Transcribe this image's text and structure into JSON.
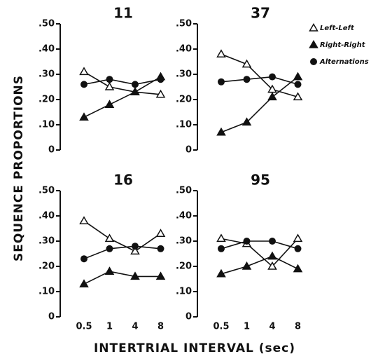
{
  "figure": {
    "ylabel": "SEQUENCE PROPORTIONS",
    "xlabel": "INTERTRIAL INTERVAL (sec)"
  },
  "chart_data": [
    {
      "type": "line",
      "title": "11",
      "ylim": [
        0,
        0.5
      ],
      "yticks": [
        0,
        {
          "value": 0.1,
          "label": ".10"
        },
        {
          "value": 0.2,
          "label": ".20"
        },
        {
          "value": 0.3,
          "label": ".30"
        },
        {
          "value": 0.4,
          "label": ".40"
        },
        {
          "value": 0.5,
          "label": ".50"
        }
      ],
      "series": [
        {
          "marker": "open-triangle",
          "color": "#111111",
          "values": [
            0.31,
            0.25,
            0.23,
            0.22
          ]
        },
        {
          "marker": "filled-triangle",
          "color": "#111111",
          "values": [
            0.13,
            0.18,
            0.23,
            0.29
          ]
        },
        {
          "marker": "filled-circle",
          "color": "#111111",
          "values": [
            0.26,
            0.28,
            0.26,
            0.28
          ]
        }
      ]
    },
    {
      "type": "line",
      "title": "37",
      "ylim": [
        0,
        0.5
      ],
      "yticks": [
        0,
        {
          "value": 0.1,
          "label": ".10"
        },
        {
          "value": 0.2,
          "label": ".20"
        },
        {
          "value": 0.3,
          "label": ".30"
        },
        {
          "value": 0.4,
          "label": ".40"
        },
        {
          "value": 0.5,
          "label": ".50"
        }
      ],
      "series": [
        {
          "name": "Left-Left",
          "marker": "open-triangle",
          "color": "#111111",
          "values": [
            0.38,
            0.34,
            0.24,
            0.21
          ]
        },
        {
          "name": "Right-Right",
          "marker": "filled-triangle",
          "color": "#111111",
          "values": [
            0.07,
            0.11,
            0.21,
            0.29
          ]
        },
        {
          "name": "Alternations",
          "marker": "filled-circle",
          "color": "#111111",
          "values": [
            0.27,
            0.28,
            0.29,
            0.26
          ]
        }
      ]
    },
    {
      "type": "line",
      "title": "16",
      "categories": [
        "0.5",
        "1",
        "4",
        "8"
      ],
      "ylim": [
        0,
        0.5
      ],
      "yticks": [
        0,
        {
          "value": 0.1,
          "label": ".10"
        },
        {
          "value": 0.2,
          "label": ".20"
        },
        {
          "value": 0.3,
          "label": ".30"
        },
        {
          "value": 0.4,
          "label": ".40"
        },
        {
          "value": 0.5,
          "label": ".50"
        }
      ],
      "series": [
        {
          "marker": "open-triangle",
          "color": "#111111",
          "values": [
            0.38,
            0.31,
            0.26,
            0.33
          ]
        },
        {
          "marker": "filled-triangle",
          "color": "#111111",
          "values": [
            0.13,
            0.18,
            0.16,
            0.16
          ]
        },
        {
          "marker": "filled-circle",
          "color": "#111111",
          "values": [
            0.23,
            0.27,
            0.28,
            0.27
          ]
        }
      ]
    },
    {
      "type": "line",
      "title": "95",
      "categories": [
        "0.5",
        "1",
        "4",
        "8"
      ],
      "ylim": [
        0,
        0.5
      ],
      "yticks": [
        0,
        {
          "value": 0.1,
          "label": ".10"
        },
        {
          "value": 0.2,
          "label": ".20"
        },
        {
          "value": 0.3,
          "label": ".30"
        },
        {
          "value": 0.4,
          "label": ".40"
        },
        {
          "value": 0.5,
          "label": ".50"
        }
      ],
      "series": [
        {
          "marker": "open-triangle",
          "color": "#111111",
          "values": [
            0.31,
            0.29,
            0.2,
            0.31
          ]
        },
        {
          "marker": "filled-triangle",
          "color": "#111111",
          "values": [
            0.17,
            0.2,
            0.24,
            0.19
          ]
        },
        {
          "marker": "filled-circle",
          "color": "#111111",
          "values": [
            0.27,
            0.3,
            0.3,
            0.27
          ]
        }
      ]
    }
  ]
}
